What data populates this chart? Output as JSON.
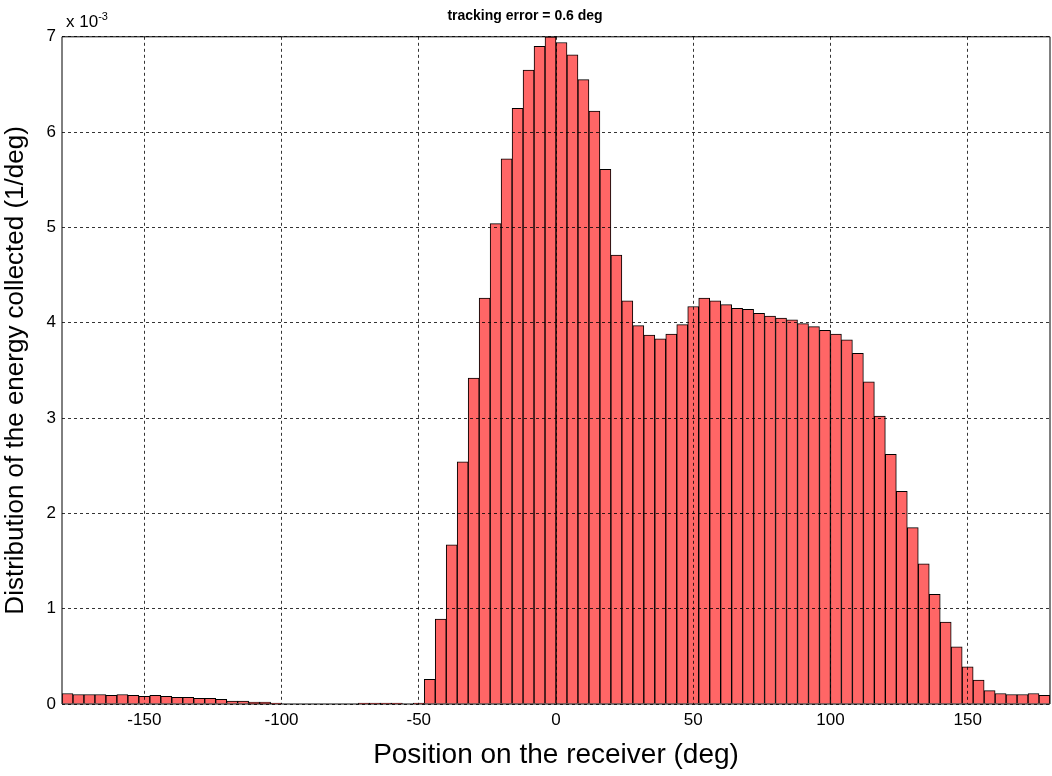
{
  "chart_data": {
    "type": "histogram",
    "title": "tracking error = 0.6 deg",
    "xlabel": "Position on the receiver (deg)",
    "ylabel": "Distribution of the energy collected (1/deg)",
    "annotations": [
      "x 10$^{-3}$"
    ],
    "bins": [
      -180,
      -176,
      -172,
      -168,
      -164,
      -160,
      -156,
      -152,
      -148,
      -144,
      -140,
      -136,
      -132,
      -128,
      -124,
      -120,
      -116,
      -112,
      -108,
      -104,
      -100,
      -96,
      -92,
      -88,
      -84,
      -80,
      -76,
      -72,
      -68,
      -64,
      -60,
      -56,
      -52,
      -48,
      -44,
      -40,
      -36,
      -32,
      -28,
      -24,
      -20,
      -16,
      -12,
      -8,
      -4,
      0,
      4,
      8,
      12,
      16,
      20,
      24,
      28,
      32,
      36,
      40,
      44,
      48,
      52,
      56,
      60,
      64,
      68,
      72,
      76,
      80,
      84,
      88,
      92,
      96,
      100,
      104,
      108,
      112,
      116,
      120,
      124,
      128,
      132,
      136,
      140,
      144,
      148,
      152,
      156,
      160,
      164,
      168,
      172,
      176,
      180
    ],
    "values": [
      0.11,
      0.1,
      0.1,
      0.1,
      0.09,
      0.1,
      0.09,
      0.08,
      0.09,
      0.08,
      0.07,
      0.07,
      0.06,
      0.06,
      0.05,
      0.03,
      0.03,
      0.02,
      0.02,
      0.01,
      0,
      0,
      0,
      0,
      0,
      0,
      0,
      0.01,
      0.01,
      0.01,
      0.01,
      0,
      0.01,
      0.26,
      0.89,
      1.67,
      2.54,
      3.42,
      4.26,
      5.04,
      5.72,
      6.25,
      6.65,
      6.9,
      7.0,
      6.94,
      6.81,
      6.55,
      6.22,
      5.61,
      4.71,
      4.23,
      3.97,
      3.87,
      3.83,
      3.88,
      3.98,
      4.17,
      4.26,
      4.23,
      4.19,
      4.15,
      4.14,
      4.1,
      4.07,
      4.05,
      4.03,
      3.99,
      3.96,
      3.92,
      3.88,
      3.82,
      3.68,
      3.38,
      3.02,
      2.62,
      2.23,
      1.85,
      1.47,
      1.15,
      0.86,
      0.6,
      0.39,
      0.25,
      0.14,
      0.11,
      0.1,
      0.1,
      0.11,
      0.09
    ],
    "color": "#ff6666",
    "xlim": [
      -180,
      180
    ],
    "xticks": [
      -150,
      -100,
      -50,
      0,
      50,
      100,
      150
    ],
    "ylim": [
      0,
      7
    ],
    "yticks": [
      0,
      1,
      2,
      3,
      4,
      5,
      6,
      7
    ],
    "grid": true
  }
}
